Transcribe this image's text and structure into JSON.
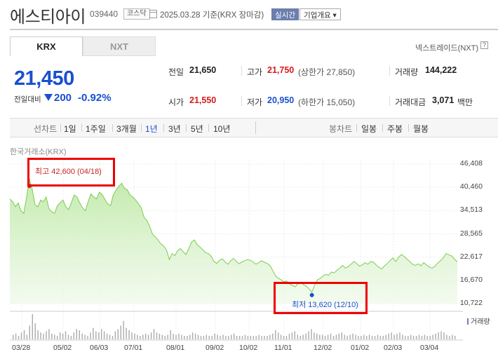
{
  "header": {
    "name": "에스티아이",
    "code": "039440",
    "market": "코스닥",
    "date": "2025.03.28",
    "basis": "기준(KRX 장마감)",
    "realtime": "실시간",
    "company_info": "기업개요 ▾"
  },
  "tabs": [
    {
      "label": "KRX",
      "active": true
    },
    {
      "label": "NXT",
      "active": false
    }
  ],
  "nxt_link": "넥스트레이드(NXT)",
  "help": "?",
  "quote": {
    "price": "21,450",
    "prev_label": "전일대비",
    "change": "200",
    "change_pct": "-0.92%",
    "direction": "down"
  },
  "stats": {
    "prev_close_label": "전일",
    "prev_close": "21,650",
    "high_label": "고가",
    "high": "21,750",
    "upper_limit": "(상한가 27,850)",
    "volume_label": "거래량",
    "volume": "144,222",
    "open_label": "시가",
    "open": "21,550",
    "low_label": "저가",
    "low": "20,950",
    "lower_limit": "(하한가 15,050)",
    "value_label": "거래대금",
    "value": "3,071",
    "value_unit": "백만"
  },
  "toolbar": {
    "line_chart": "선차트",
    "periods": [
      "1일",
      "1주일",
      "3개월",
      "1년",
      "3년",
      "5년",
      "10년"
    ],
    "selected_period": "1년",
    "candle_chart": "봉차트",
    "candle_periods": [
      "일봉",
      "주봉",
      "월봉"
    ]
  },
  "chart_data": {
    "type": "area",
    "exchange_label": "한국거래소(KRX)",
    "y_ticks": [
      "46,408",
      "40,460",
      "34,513",
      "28,565",
      "22,617",
      "16,670",
      "10,722"
    ],
    "ylim": [
      10722,
      46408
    ],
    "x_ticks": [
      "03/28",
      "05/02",
      "06/03",
      "07/01",
      "08/01",
      "09/02",
      "10/02",
      "11/01",
      "12/02",
      "01/02",
      "02/03",
      "03/04"
    ],
    "volume_label": "거래량",
    "high_annotation": "최고 42,600 (04/18)",
    "low_annotation": "최저 13,620 (12/10)",
    "values": [
      37500,
      36800,
      35500,
      36500,
      34500,
      33800,
      38000,
      42600,
      40000,
      36000,
      35500,
      37200,
      36800,
      38000,
      35000,
      34200,
      33800,
      35800,
      36500,
      37200,
      35500,
      34800,
      36500,
      38500,
      38000,
      36500,
      35200,
      34500,
      36800,
      38800,
      38000,
      37500,
      39200,
      38600,
      37400,
      36200,
      35800,
      38500,
      39800,
      40800,
      41500,
      40200,
      39800,
      38500,
      38000,
      37200,
      36300,
      35200,
      32800,
      32000,
      30500,
      28500,
      27800,
      27000,
      26000,
      25500,
      24500,
      22000,
      23500,
      23000,
      24300,
      24800,
      24000,
      23300,
      24800,
      26500,
      27000,
      25800,
      25200,
      24500,
      23800,
      23500,
      22800,
      21500,
      21000,
      21800,
      22200,
      21300,
      20800,
      21700,
      22300,
      21500,
      20900,
      21400,
      21700,
      22000,
      21800,
      21400,
      20800,
      21200,
      21700,
      21300,
      21000,
      20500,
      19200,
      17800,
      17200,
      16800,
      16300,
      16500,
      15800,
      15400,
      15000,
      15800,
      16200,
      15600,
      15200,
      14500,
      13620,
      15500,
      16800,
      17200,
      17800,
      18200,
      18000,
      18800,
      18600,
      19300,
      19800,
      20500,
      19800,
      20200,
      20800,
      21500,
      21000,
      20300,
      20600,
      21200,
      20800,
      21500,
      21300,
      20600,
      20000,
      19600,
      20400,
      21000,
      21800,
      22400,
      21500,
      22600,
      23300,
      22800,
      22100,
      21500,
      20800,
      20500,
      20900,
      20400,
      21200,
      20600,
      20100,
      19800,
      20300,
      21100,
      21700,
      22500,
      23500,
      23200,
      22900,
      22100,
      21450
    ],
    "volume": [
      4,
      5,
      3,
      6,
      8,
      4,
      12,
      22,
      14,
      8,
      6,
      5,
      7,
      9,
      5,
      4,
      3,
      6,
      5,
      7,
      4,
      3,
      6,
      9,
      8,
      5,
      4,
      3,
      6,
      10,
      7,
      6,
      9,
      7,
      5,
      4,
      3,
      7,
      9,
      12,
      16,
      10,
      8,
      6,
      5,
      4,
      3,
      4,
      5,
      4,
      6,
      9,
      6,
      5,
      4,
      3,
      4,
      8,
      5,
      4,
      5,
      4,
      3,
      3,
      4,
      6,
      5,
      4,
      3,
      3,
      4,
      3,
      3,
      5,
      4,
      3,
      4,
      3,
      3,
      4,
      5,
      3,
      3,
      3,
      4,
      3,
      3,
      3,
      3,
      4,
      3,
      3,
      3,
      4,
      5,
      8,
      6,
      4,
      3,
      3,
      5,
      6,
      7,
      4,
      3,
      4,
      5,
      7,
      9,
      6,
      5,
      4,
      4,
      3,
      4,
      5,
      3,
      4,
      5,
      6,
      4,
      3,
      4,
      5,
      4,
      3,
      3,
      4,
      3,
      4,
      3,
      3,
      4,
      3,
      3,
      4,
      5,
      6,
      4,
      5,
      6,
      4,
      3,
      3,
      4,
      3,
      3,
      4,
      3,
      4,
      3,
      3,
      4,
      5,
      6,
      7,
      6,
      4,
      3,
      4,
      3
    ]
  }
}
